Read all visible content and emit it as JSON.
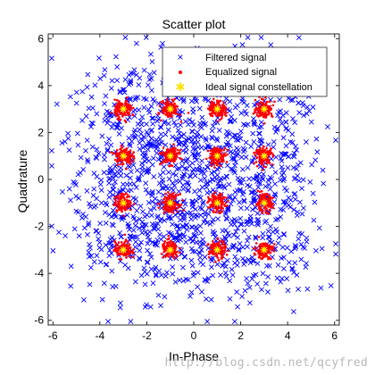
{
  "watermark": "http://blog.csdn.net/qcyfred",
  "chart_data": {
    "type": "scatter",
    "title": "Scatter plot",
    "xlabel": "In-Phase",
    "ylabel": "Quadrature",
    "xlim": [
      -6.2,
      6.2
    ],
    "ylim": [
      -6.2,
      6.2
    ],
    "xticks": [
      -6,
      -4,
      -2,
      0,
      2,
      4,
      6
    ],
    "yticks": [
      -6,
      -4,
      -2,
      0,
      2,
      4,
      6
    ],
    "grid": false,
    "legend_position": "top-right",
    "constellation_levels": [
      -3,
      -1,
      1,
      3
    ],
    "series": [
      {
        "name": "Filtered signal",
        "marker": "x",
        "color": "#0000ff",
        "spread_sigma": 1.3,
        "point_count": 1500
      },
      {
        "name": "Equalized signal",
        "marker": "dot",
        "color": "#ff0000",
        "spread_sigma": 0.18,
        "point_count": 140
      },
      {
        "name": "Ideal signal constellation",
        "marker": "asterisk",
        "color": "#ffff00",
        "points": [
          [
            -3,
            3
          ],
          [
            -1,
            3
          ],
          [
            1,
            3
          ],
          [
            3,
            3
          ],
          [
            -3,
            1
          ],
          [
            -1,
            1
          ],
          [
            1,
            1
          ],
          [
            3,
            1
          ],
          [
            -3,
            -1
          ],
          [
            -1,
            -1
          ],
          [
            1,
            -1
          ],
          [
            3,
            -1
          ],
          [
            -3,
            -3
          ],
          [
            -1,
            -3
          ],
          [
            1,
            -3
          ],
          [
            3,
            -3
          ]
        ]
      }
    ]
  }
}
